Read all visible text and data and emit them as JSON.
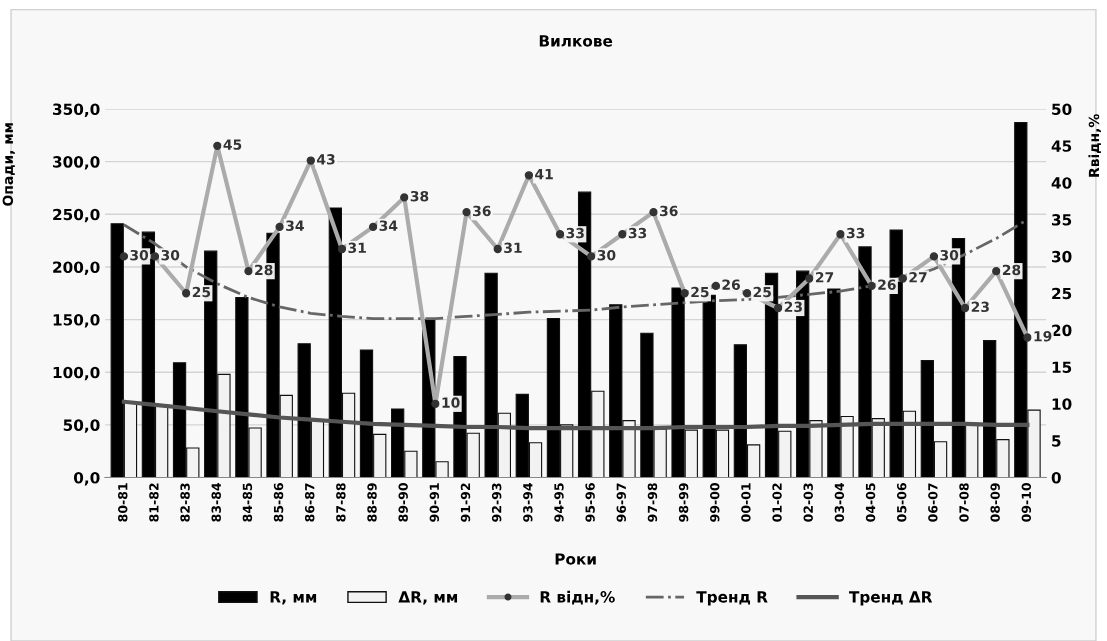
{
  "chart_data": {
    "type": "bar",
    "title": "Вилкове",
    "xlabel": "Роки",
    "ylabel": "Опади, мм",
    "y2label": "Rвідн,%",
    "categories": [
      "80-81",
      "81-82",
      "82-83",
      "83-84",
      "84-85",
      "85-86",
      "86-87",
      "87-88",
      "88-89",
      "89-90",
      "90-91",
      "91-92",
      "92-93",
      "93-94",
      "94-95",
      "95-96",
      "96-97",
      "97-98",
      "98-99",
      "99-00",
      "00-01",
      "01-02",
      "02-03",
      "03-04",
      "04-05",
      "05-06",
      "06-07",
      "07-08",
      "08-09",
      "09-10"
    ],
    "series": [
      {
        "name": "R, мм",
        "color": "#000000",
        "values": [
          241,
          233,
          109,
          215,
          171,
          232,
          127,
          256,
          121,
          65,
          150,
          115,
          194,
          79,
          151,
          271,
          164,
          137,
          180,
          173,
          126,
          194,
          196,
          179,
          219,
          235,
          111,
          227,
          130,
          337
        ]
      },
      {
        "name": "ΔR, мм",
        "color": "#f2f2f2",
        "values": [
          72,
          69,
          28,
          98,
          47,
          78,
          55,
          80,
          41,
          25,
          15,
          42,
          61,
          33,
          50,
          82,
          54,
          46,
          45,
          45,
          31,
          44,
          54,
          58,
          56,
          63,
          34,
          50,
          36,
          64
        ]
      },
      {
        "name": "R відн,%",
        "type": "line",
        "axis": "y2",
        "color": "#ababab",
        "marker": "circle",
        "line_style": "solid",
        "data_labels": true,
        "values": [
          30,
          30,
          25,
          45,
          28,
          34,
          43,
          31,
          34,
          38,
          10,
          36,
          31,
          41,
          33,
          30,
          33,
          36,
          25,
          26,
          25,
          23,
          27,
          33,
          26,
          27,
          30,
          23,
          28,
          19
        ]
      },
      {
        "name": "Тренд R",
        "type": "line",
        "color": "#666666",
        "marker": "none",
        "line_style": "dashdot",
        "values": [
          240,
          222,
          200,
          184,
          171,
          162,
          156,
          153,
          151,
          151,
          151,
          153,
          155,
          157,
          158,
          159,
          162,
          164,
          166,
          168,
          169,
          171,
          174,
          177,
          182,
          188,
          198,
          212,
          227,
          245
        ]
      },
      {
        "name": "Тренд ΔR",
        "type": "line",
        "color": "#555555",
        "marker": "none",
        "line_style": "solid",
        "values": [
          72,
          69,
          66,
          63,
          60,
          57,
          55,
          53,
          51,
          50,
          49,
          48,
          48,
          47,
          47,
          47,
          47,
          47,
          48,
          48,
          48,
          49,
          49,
          50,
          51,
          51,
          51,
          51,
          50,
          50
        ]
      }
    ],
    "ylim": [
      0,
      350
    ],
    "yticks": [
      {
        "value": 0,
        "label": "0,0"
      },
      {
        "value": 50,
        "label": "50,0"
      },
      {
        "value": 100,
        "label": "100,0"
      },
      {
        "value": 150,
        "label": "150,0"
      },
      {
        "value": 200,
        "label": "200,0"
      },
      {
        "value": 250,
        "label": "250,0"
      },
      {
        "value": 300,
        "label": "300,0"
      },
      {
        "value": 350,
        "label": "350,0"
      }
    ],
    "y2lim": [
      0,
      50
    ],
    "y2ticks": [
      0,
      5,
      10,
      15,
      20,
      25,
      30,
      35,
      40,
      45,
      50
    ],
    "grid": "y",
    "legend": "bottom"
  }
}
